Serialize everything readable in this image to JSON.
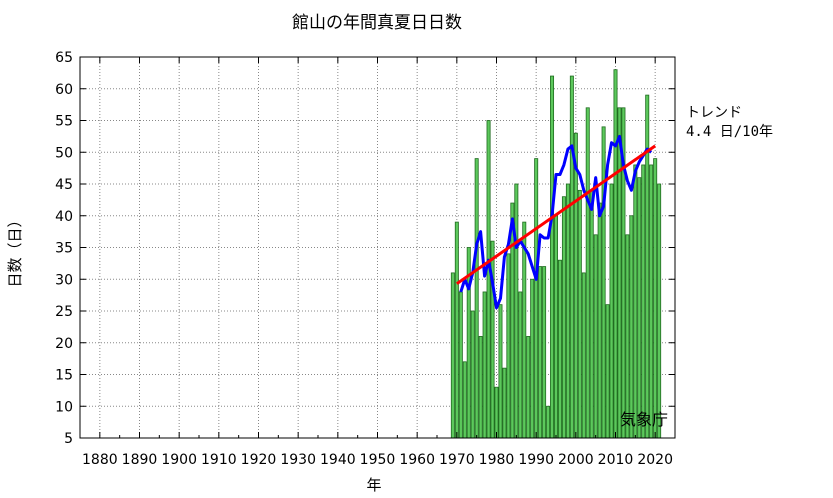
{
  "chart_data": {
    "type": "bar",
    "title": "館山の年間真夏日日数",
    "xlabel": "年",
    "ylabel": "日数（日）",
    "credit": "気象庁",
    "trend_label": "トレンド",
    "trend_value": "4.4 日/10年",
    "xlim": [
      1875,
      2025
    ],
    "ylim": [
      5,
      65
    ],
    "x_ticks": [
      1880,
      1890,
      1900,
      1910,
      1920,
      1930,
      1940,
      1950,
      1960,
      1970,
      1980,
      1990,
      2000,
      2010,
      2020
    ],
    "y_ticks": [
      5,
      10,
      15,
      20,
      25,
      30,
      35,
      40,
      45,
      50,
      55,
      60,
      65
    ],
    "grid": true,
    "colors": {
      "bar_fill": "#5cc85c",
      "bar_edge": "#1f6b1f",
      "moving_average": "#0000ff",
      "trend": "#ff0000"
    },
    "series": [
      {
        "x": [
          1969,
          1970,
          1971,
          1972,
          1973,
          1974,
          1975,
          1976,
          1977,
          1978,
          1979,
          1980,
          1981,
          1982,
          1983,
          1984,
          1985,
          1986,
          1987,
          1988,
          1989,
          1990,
          1991,
          1992,
          1993,
          1994,
          1995,
          1996,
          1997,
          1998,
          1999,
          2000,
          2001,
          2002,
          2003,
          2004,
          2005,
          2006,
          2007,
          2008,
          2009,
          2010,
          2011,
          2012,
          2013,
          2014,
          2015,
          2016,
          2017,
          2018,
          2019,
          2020,
          2021
        ],
        "values": [
          31,
          39,
          28,
          17,
          35,
          25,
          49,
          21,
          28,
          55,
          36,
          13,
          26,
          16,
          34,
          42,
          45,
          28,
          39,
          21,
          30,
          49,
          32,
          32,
          10,
          62,
          40,
          33,
          43,
          45,
          62,
          53,
          44,
          31,
          57,
          44,
          37,
          42,
          54,
          26,
          45,
          63,
          57,
          57,
          37,
          40,
          48,
          46,
          48,
          59,
          48,
          49,
          45
        ]
      }
    ],
    "moving_average": {
      "x": [
        1971,
        1972,
        1973,
        1974,
        1975,
        1976,
        1977,
        1978,
        1979,
        1980,
        1981,
        1982,
        1983,
        1984,
        1985,
        1986,
        1987,
        1988,
        1989,
        1990,
        1991,
        1992,
        1993,
        1994,
        1995,
        1996,
        1997,
        1998,
        1999,
        2000,
        2001,
        2002,
        2003,
        2004,
        2005,
        2006,
        2007,
        2008,
        2009,
        2010,
        2011,
        2012,
        2013,
        2014,
        2015,
        2016,
        2017,
        2018,
        2019
      ],
      "values": [
        28.0,
        30.0,
        28.5,
        31.0,
        35.5,
        37.5,
        30.5,
        33.0,
        29.5,
        25.5,
        27.0,
        33.5,
        35.5,
        39.5,
        35.0,
        36.0,
        35.0,
        34.0,
        32.0,
        30.0,
        37.0,
        36.5,
        36.5,
        40.0,
        46.5,
        46.5,
        48.0,
        50.5,
        51.0,
        47.5,
        46.5,
        44.0,
        42.5,
        41.0,
        46.0,
        40.0,
        41.5,
        48.0,
        51.5,
        51.0,
        52.5,
        48.0,
        45.5,
        44.0,
        47.0,
        48.5,
        49.5,
        50.5,
        50.0
      ]
    },
    "trend_line": {
      "x": [
        1970,
        2020
      ],
      "values": [
        29.3,
        51.0
      ]
    }
  }
}
